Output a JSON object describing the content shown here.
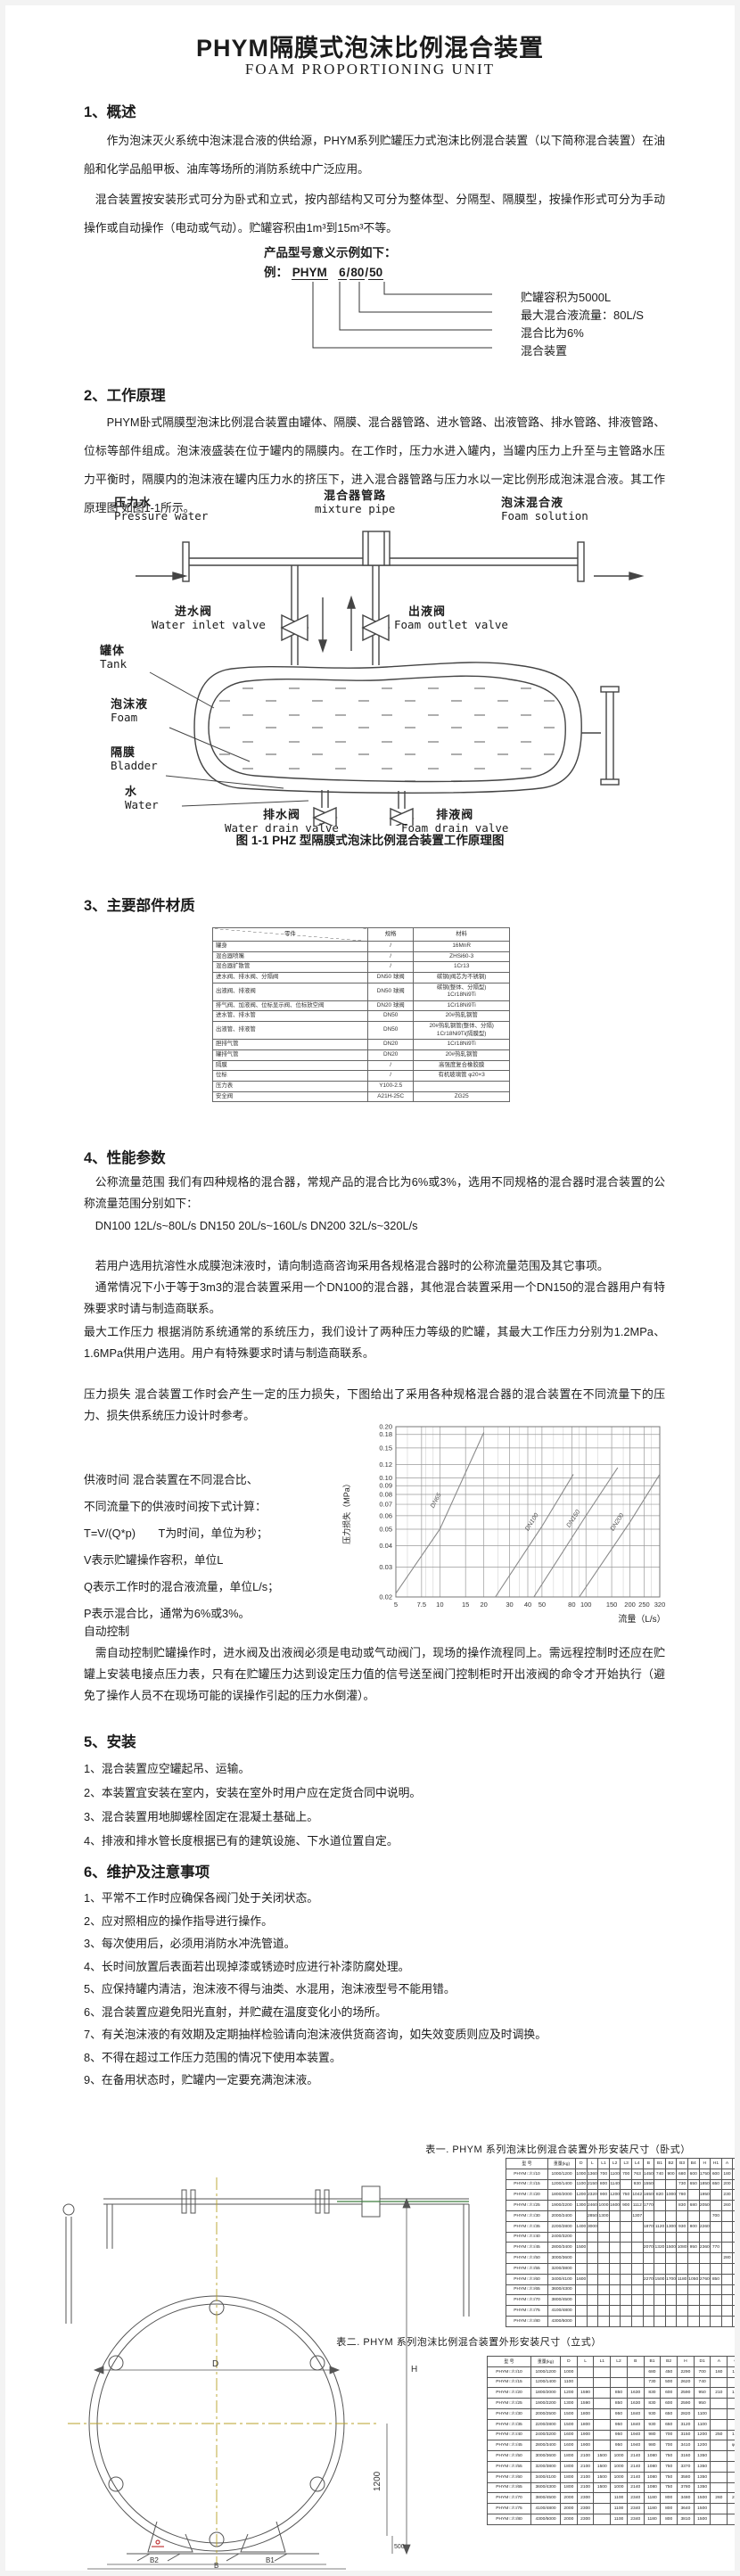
{
  "page": {
    "title": "PHYM隔膜式泡沫比例混合装置",
    "subtitle": "FOAM PROPORTIONING UNIT"
  },
  "sections": {
    "s1": {
      "heading": "1、概述",
      "p1": "作为泡沫灭火系统中泡沫混合液的供给源，PHYM系列贮罐压力式泡沫比例混合装置（以下简称混合装置）在油船和化学品船甲板、油库等场所的消防系统中广泛应用。",
      "p2": "混合装置按安装形式可分为卧式和立式，按内部结构又可分为整体型、分隔型、隔膜型，按操作形式可分为手动操作或自动操作（电动或气动）。贮罐容积由1m³到15m³不等。"
    },
    "model": {
      "intro": "产品型号意义示例如下：",
      "example_label": "例：",
      "code": [
        "PHYM",
        "6",
        "80",
        "50"
      ],
      "sep": "/",
      "callouts": [
        "贮罐容积为5000L",
        "最大混合液流量：80L/S",
        "混合比为6%",
        "混合装置"
      ]
    },
    "s2": {
      "heading": "2、工作原理",
      "p1": "PHYM卧式隔膜型泡沫比例混合装置由罐体、隔膜、混合器管路、进水管路、出液管路、排水管路、排液管路、位标等部件组成。泡沫液盛装在位于罐内的隔膜内。在工作时，压力水进入罐内，当罐内压力上升至与主管路水压力平衡时，隔膜内的泡沫液在罐内压力水的挤压下，进入混合器管路与压力水以一定比例形成泡沫混合液。其工作原理图 如图1-1所示。"
    },
    "fig1": {
      "labels": {
        "pressure_water": {
          "cn": "压力水",
          "en": "Pressure water"
        },
        "mixture_pipe": {
          "cn": "混合器管路",
          "en": "mixture pipe"
        },
        "foam_solution": {
          "cn": "泡沫混合液",
          "en": "Foam solution"
        },
        "water_inlet_valve": {
          "cn": "进水阀",
          "en": "Water inlet valve"
        },
        "foam_outlet_valve": {
          "cn": "出液阀",
          "en": "Foam outlet valve"
        },
        "tank": {
          "cn": "罐体",
          "en": "Tank"
        },
        "foam": {
          "cn": "泡沫液",
          "en": "Foam"
        },
        "bladder": {
          "cn": "隔膜",
          "en": "Bladder"
        },
        "water": {
          "cn": "水",
          "en": "Water"
        },
        "water_drain_valve": {
          "cn": "排水阀",
          "en": "Water drain valve"
        },
        "foam_drain_valve": {
          "cn": "排液阀",
          "en": "Foam drain valve"
        }
      },
      "caption": "图 1-1 PHZ 型隔膜式泡沫比例混合装置工作原理图"
    },
    "s3": {
      "heading": "3、主要部件材质",
      "table": {
        "columns": [
          "零件",
          "规格",
          "材料"
        ],
        "rows": [
          [
            "罐身",
            "/",
            "16MnR"
          ],
          [
            "混合器喷嘴",
            "/",
            "ZHSi60-3"
          ],
          [
            "混合器扩散管",
            "/",
            "1Cr13"
          ],
          [
            "进水阀、排水阀、分隔阀",
            "DN50 球阀",
            "碳钢(阀芯为不锈钢)"
          ],
          [
            "出液阀、排液阀",
            "DN50 球阀",
            "碳钢(整体、分隔型)\n1Cr18Ni9Ti"
          ],
          [
            "排气阀、加液阀、位标显示阀、位标放空阀",
            "DN20 球阀",
            "1Cr18Ni9Ti"
          ],
          [
            "进水管、排水管",
            "DN50",
            "20#热轧钢管"
          ],
          [
            "出液管、排液管",
            "DN50",
            "20#热轧钢管(整体、分隔)\n1Cr18Ni9Ti(隔膜型)"
          ],
          [
            "胆排气管",
            "DN20",
            "1Cr18Ni9Ti"
          ],
          [
            "罐排气管",
            "DN20",
            "20#热轧钢管"
          ],
          [
            "隔膜",
            "/",
            "高强度复合橡胶膜"
          ],
          [
            "位标",
            "/",
            "有机玻璃管 φ20×3"
          ],
          [
            "压力表",
            "Y100-2.5",
            ""
          ],
          [
            "安全阀",
            "A21H-25C",
            "ZG25"
          ]
        ]
      }
    },
    "s4": {
      "heading": "4、性能参数",
      "p_flow": "公称流量范围  我们有四种规格的混合器，常规产品的混合比为6%或3%，选用不同规格的混合器时混合装置的公称流量范围分别如下：",
      "p_dn": "DN100  12L/s~80L/s   DN150  20L/s~160L/s   DN200  32L/s~320L/s",
      "p_note": "若用户选用抗溶性水成膜泡沫液时，请向制造商咨询采用各规格混合器时的公称流量范围及其它事项。",
      "p_usual": "通常情况下小于等于3m3的混合装置采用一个DN100的混合器，其他混合装置采用一个DN150的混合器用户有特殊要求时请与制造商联系。",
      "p_pressure": "最大工作压力 根据消防系统通常的系统压力，我们设计了两种压力等级的贮罐，其最大工作压力分别为1.2MPa、1.6MPa供用户选用。用户有特殊要求时请与制造商联系。",
      "p_loss": "压力损失  混合装置工作时会产生一定的压力损失，下图给出了采用各种规格混合器的混合装置在不同流量下的压力、损失供系统压力设计时参考。",
      "supply_lines": [
        "供液时间  混合装置在不同混合比、",
        "不同流量下的供液时间按下式计算：",
        "T=V/(Q*p)　　T为时间，单位为秒；",
        "V表示贮罐操作容积，单位L",
        "Q表示工作时的混合液流量，单位L/s；",
        "P表示混合比，通常为6%或3%。"
      ],
      "auto_heading": "自动控制",
      "auto_p": "需自动控制贮罐操作时，进水阀及出液阀必须是电动或气动阀门，现场的操作流程同上。需远程控制时还应在贮罐上安装电接点压力表，只有在贮罐压力达到设定压力值的信号送至阀门控制柜时开出液阀的命令才开始执行（避免了操作人员不在现场可能的误操作引起的压力水倒灌）。"
    },
    "s5": {
      "heading": "5、安装",
      "items": [
        "1、混合装置应空罐起吊、运输。",
        "2、本装置宜安装在室内，安装在室外时用户应在定货合同中说明。",
        "3、混合装置用地脚螺栓固定在混凝土基础上。",
        "4、排液和排水管长度根据已有的建筑设施、下水道位置自定。"
      ]
    },
    "s6": {
      "heading": "6、维护及注意事项",
      "items": [
        "1、平常不工作时应确保各阀门处于关闭状态。",
        "2、应对照相应的操作指导进行操作。",
        "3、每次使用后，必须用消防水冲洗管道。",
        "4、长时间放置后表面若出现掉漆或锈迹时应进行补漆防腐处理。",
        "5、应保持罐内清洁，泡沫液不得与油类、水混用，泡沫液型号不能用错。",
        "6、混合装置应避免阳光直射，并贮藏在温度变化小的场所。",
        "7、有关泡沫液的有效期及定期抽样检验请向泡沫液供货商咨询，如失效变质则应及时调换。",
        "8、不得在超过工作压力范围的情况下使用本装置。",
        "9、在备用状态时，贮罐内一定要充满泡沫液。"
      ]
    },
    "t1": {
      "caption": "表一. PHYM 系列泡沫比例混合装置外形安装尺寸（卧式）",
      "columns": [
        "型 号",
        "重量(kg)",
        "D",
        "L",
        "L1",
        "L2",
        "L3",
        "L4",
        "B",
        "B1",
        "B2",
        "B3",
        "B4",
        "H",
        "H1",
        "A",
        "C"
      ],
      "rows": [
        [
          "PHYM □/□/10",
          "1000/1200",
          "1000",
          "1360",
          "700",
          "1100",
          "700",
          "763",
          "1450",
          "740",
          "900",
          "680",
          "600",
          "1750",
          "600",
          "180",
          "100"
        ],
        [
          "PHYM □/□/15",
          "1200/1400",
          "1100",
          "2150",
          "800",
          "1140",
          "",
          "930",
          "1550",
          "",
          "",
          "730",
          "650",
          "1850",
          "650",
          "200",
          "120"
        ],
        [
          "PHYM □/□/20",
          "1800/2000",
          "1200",
          "2320",
          "900",
          "1200",
          "750",
          "1042",
          "1650",
          "820",
          "1000",
          "780",
          "",
          "1950",
          "",
          "230",
          "130"
        ],
        [
          "PHYM □/□/25",
          "1900/2200",
          "1300",
          "2460",
          "1000",
          "1600",
          "900",
          "1112",
          "1770",
          "",
          "",
          "830",
          "680",
          "2050",
          "",
          "260",
          ""
        ],
        [
          "PHYM □/□/30",
          "2000/2400",
          "",
          "2850",
          "1300",
          "",
          "",
          "1307",
          "",
          "",
          "",
          "",
          "",
          "",
          "700",
          "",
          ""
        ],
        [
          "PHYM □/□/35",
          "2200/2800",
          "1400",
          "3000",
          "",
          "",
          "",
          "",
          "1870",
          "1120",
          "1300",
          "930",
          "800",
          "2260",
          "",
          "",
          ""
        ],
        [
          "PHYM □/□/40",
          "2400/3200",
          "",
          "",
          "",
          "",
          "",
          "",
          "",
          "",
          "",
          "",
          "",
          "",
          "",
          "",
          ""
        ],
        [
          "PHYM □/□/45",
          "2800/3400",
          "1500",
          "",
          "",
          "",
          "",
          "",
          "2070",
          "1320",
          "1500",
          "1080",
          "950",
          "2360",
          "770",
          "",
          ""
        ],
        [
          "PHYM □/□/50",
          "3000/3600",
          "",
          "",
          "",
          "",
          "",
          "",
          "",
          "",
          "",
          "",
          "",
          "",
          "",
          "280",
          "160"
        ],
        [
          "PHYM □/□/55",
          "3200/3800",
          "",
          "",
          "",
          "",
          "",
          "",
          "",
          "",
          "",
          "",
          "",
          "",
          "",
          "",
          ""
        ],
        [
          "PHYM □/□/60",
          "3400/4100",
          "1600",
          "",
          "",
          "",
          "",
          "",
          "2270",
          "1500",
          "1700",
          "1180",
          "1050",
          "2760",
          "850",
          "",
          ""
        ],
        [
          "PHYM □/□/65",
          "3600/4300",
          "",
          "",
          "",
          "",
          "",
          "",
          "",
          "",
          "",
          "",
          "",
          "",
          "",
          "",
          ""
        ],
        [
          "PHYM □/□/70",
          "3800/4500",
          "",
          "",
          "",
          "",
          "",
          "",
          "",
          "",
          "",
          "",
          "",
          "",
          "",
          "",
          ""
        ],
        [
          "PHYM □/□/75",
          "4100/4800",
          "",
          "",
          "",
          "",
          "",
          "",
          "",
          "",
          "",
          "",
          "",
          "",
          "",
          "",
          ""
        ],
        [
          "PHYM □/□/80",
          "4300/5000",
          "",
          "",
          "",
          "",
          "",
          "",
          "",
          "",
          "",
          "",
          "",
          "",
          "",
          "",
          ""
        ]
      ]
    },
    "t2": {
      "caption": "表二. PHYM 系列泡沫比例混合装置外形安装尺寸（立式）",
      "columns": [
        "型 号",
        "重量(kg)",
        "D",
        "L",
        "L1",
        "L2",
        "B",
        "B1",
        "B2",
        "H",
        "D1",
        "A",
        "C"
      ],
      "rows": [
        [
          "PHYM □/□/10",
          "1000/1200",
          "1000",
          "",
          "",
          "",
          "",
          "680",
          "450",
          "2290",
          "700",
          "160",
          "110"
        ],
        [
          "PHYM □/□/15",
          "1200/1400",
          "1100",
          "",
          "",
          "",
          "",
          "730",
          "500",
          "2620",
          "740",
          "",
          ""
        ],
        [
          "PHYM □/□/20",
          "1800/2000",
          "1200",
          "1590",
          "",
          "850",
          "1630",
          "830",
          "600",
          "2590",
          "950",
          "210",
          "150"
        ],
        [
          "PHYM □/□/25",
          "1900/2200",
          "1300",
          "1590",
          "",
          "850",
          "1630",
          "830",
          "600",
          "2590",
          "950",
          "",
          ""
        ],
        [
          "PHYM □/□/30",
          "2000/2500",
          "1500",
          "1800",
          "",
          "950",
          "1840",
          "930",
          "650",
          "2820",
          "1100",
          "",
          ""
        ],
        [
          "PHYM □/□/35",
          "2200/2800",
          "1500",
          "1800",
          "",
          "950",
          "1840",
          "930",
          "650",
          "3120",
          "1100",
          "",
          ""
        ],
        [
          "PHYM □/□/40",
          "2400/3200",
          "1600",
          "1900",
          "",
          "950",
          "1940",
          "980",
          "700",
          "3150",
          "1200",
          "250",
          "180"
        ],
        [
          "PHYM □/□/45",
          "2800/3400",
          "1600",
          "1900",
          "",
          "950",
          "1940",
          "980",
          "700",
          "3410",
          "1200",
          "",
          "φ30"
        ],
        [
          "PHYM □/□/50",
          "3000/3600",
          "1800",
          "2100",
          "1500",
          "1000",
          "2140",
          "1080",
          "750",
          "3160",
          "1350",
          "",
          ""
        ],
        [
          "PHYM □/□/55",
          "3200/3800",
          "1800",
          "2100",
          "1500",
          "1000",
          "2140",
          "1080",
          "750",
          "3370",
          "1350",
          "",
          ""
        ],
        [
          "PHYM □/□/60",
          "3400/4100",
          "1800",
          "2100",
          "1500",
          "1000",
          "2140",
          "1080",
          "750",
          "3580",
          "1350",
          "",
          ""
        ],
        [
          "PHYM □/□/65",
          "3600/4300",
          "1800",
          "2100",
          "1500",
          "1000",
          "2140",
          "1080",
          "750",
          "3780",
          "1350",
          "",
          ""
        ],
        [
          "PHYM □/□/70",
          "3800/4500",
          "2000",
          "2300",
          "",
          "1100",
          "2340",
          "1180",
          "800",
          "3480",
          "1500",
          "260",
          "200"
        ],
        [
          "PHYM □/□/75",
          "4100/4800",
          "2000",
          "2300",
          "",
          "1100",
          "2340",
          "1180",
          "800",
          "3640",
          "1500",
          "",
          ""
        ],
        [
          "PHYM □/□/80",
          "4300/5000",
          "2000",
          "2300",
          "",
          "1100",
          "2340",
          "1180",
          "800",
          "3810",
          "1500",
          "",
          ""
        ]
      ]
    },
    "drawing": {
      "dims": {
        "d": "D",
        "h": "H",
        "b": "B",
        "b1": "B1",
        "b2": "B2",
        "v1200": "1200",
        "v500": "500"
      }
    }
  },
  "chart_data": {
    "type": "line",
    "title": "",
    "xlabel": "流量（L/s）",
    "ylabel": "压力损失（MPa）",
    "xscale": "log",
    "yscale": "log",
    "xlim": [
      5,
      320
    ],
    "ylim": [
      0.02,
      0.2
    ],
    "grid": true,
    "legend_position": "on-line-labels",
    "xticks": [
      5,
      7.5,
      10,
      15,
      20,
      30,
      40,
      50,
      80,
      100,
      150,
      200,
      250,
      320
    ],
    "xtick_labels": [
      "5",
      "7.5",
      "10",
      "15",
      "20",
      "30",
      "40",
      "50",
      "80",
      "100",
      "150",
      "200",
      "250",
      "320"
    ],
    "xgrid_minor": [
      6,
      8,
      9,
      25,
      35,
      45,
      60,
      70,
      90,
      120,
      180,
      280
    ],
    "yticks": [
      0.02,
      0.03,
      0.04,
      0.05,
      0.06,
      0.07,
      0.08,
      0.09,
      0.1,
      0.12,
      0.15,
      0.18,
      0.2
    ],
    "ytick_labels": [
      "0.02",
      "0.03",
      "0.04",
      "0.05",
      "0.06",
      "0.07",
      "0.08",
      "0.09",
      "0.10",
      "0.12",
      "0.15",
      "0.18",
      "0.20"
    ],
    "series": [
      {
        "name": "DN65",
        "points": [
          [
            5,
            0.021
          ],
          [
            10,
            0.05
          ],
          [
            20,
            0.185
          ]
        ]
      },
      {
        "name": "DN100",
        "points": [
          [
            24,
            0.02
          ],
          [
            50,
            0.052
          ],
          [
            82,
            0.105
          ]
        ]
      },
      {
        "name": "DN150",
        "points": [
          [
            44,
            0.02
          ],
          [
            100,
            0.06
          ],
          [
            165,
            0.115
          ]
        ]
      },
      {
        "name": "DN200",
        "points": [
          [
            90,
            0.02
          ],
          [
            200,
            0.055
          ],
          [
            320,
            0.105
          ]
        ]
      }
    ]
  }
}
